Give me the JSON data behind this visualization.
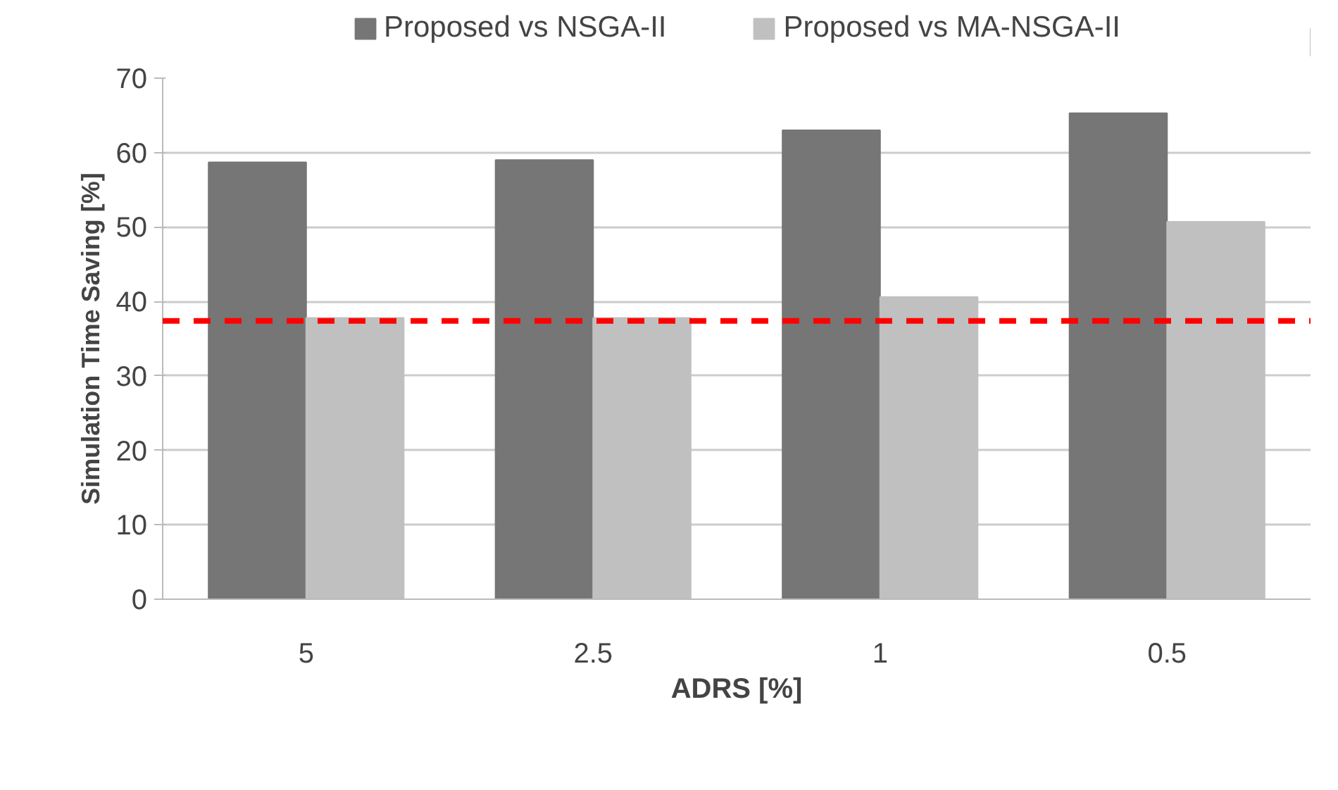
{
  "chart_data": {
    "type": "bar",
    "xlabel": "ADRS [%]",
    "ylabel": "Simulation Time Saving [%]",
    "categories": [
      "5",
      "2.5",
      "1",
      "0.5"
    ],
    "series": [
      {
        "name": "Proposed vs NSGA-II",
        "color": "#767676",
        "values": [
          58.7,
          59.0,
          63.0,
          65.3
        ]
      },
      {
        "name": "Proposed vs MA-NSGA-II",
        "color": "#c0c0c0",
        "values": [
          37.8,
          37.8,
          40.6,
          50.7
        ]
      }
    ],
    "ylim": [
      0,
      70
    ],
    "yticks": [
      0,
      10,
      20,
      30,
      40,
      50,
      60,
      70
    ],
    "grid": "y",
    "legend": "top",
    "ref_lines": [
      {
        "axis": "y",
        "value": 37.4,
        "color": "#ff0000",
        "line_style": "dashed"
      }
    ]
  }
}
